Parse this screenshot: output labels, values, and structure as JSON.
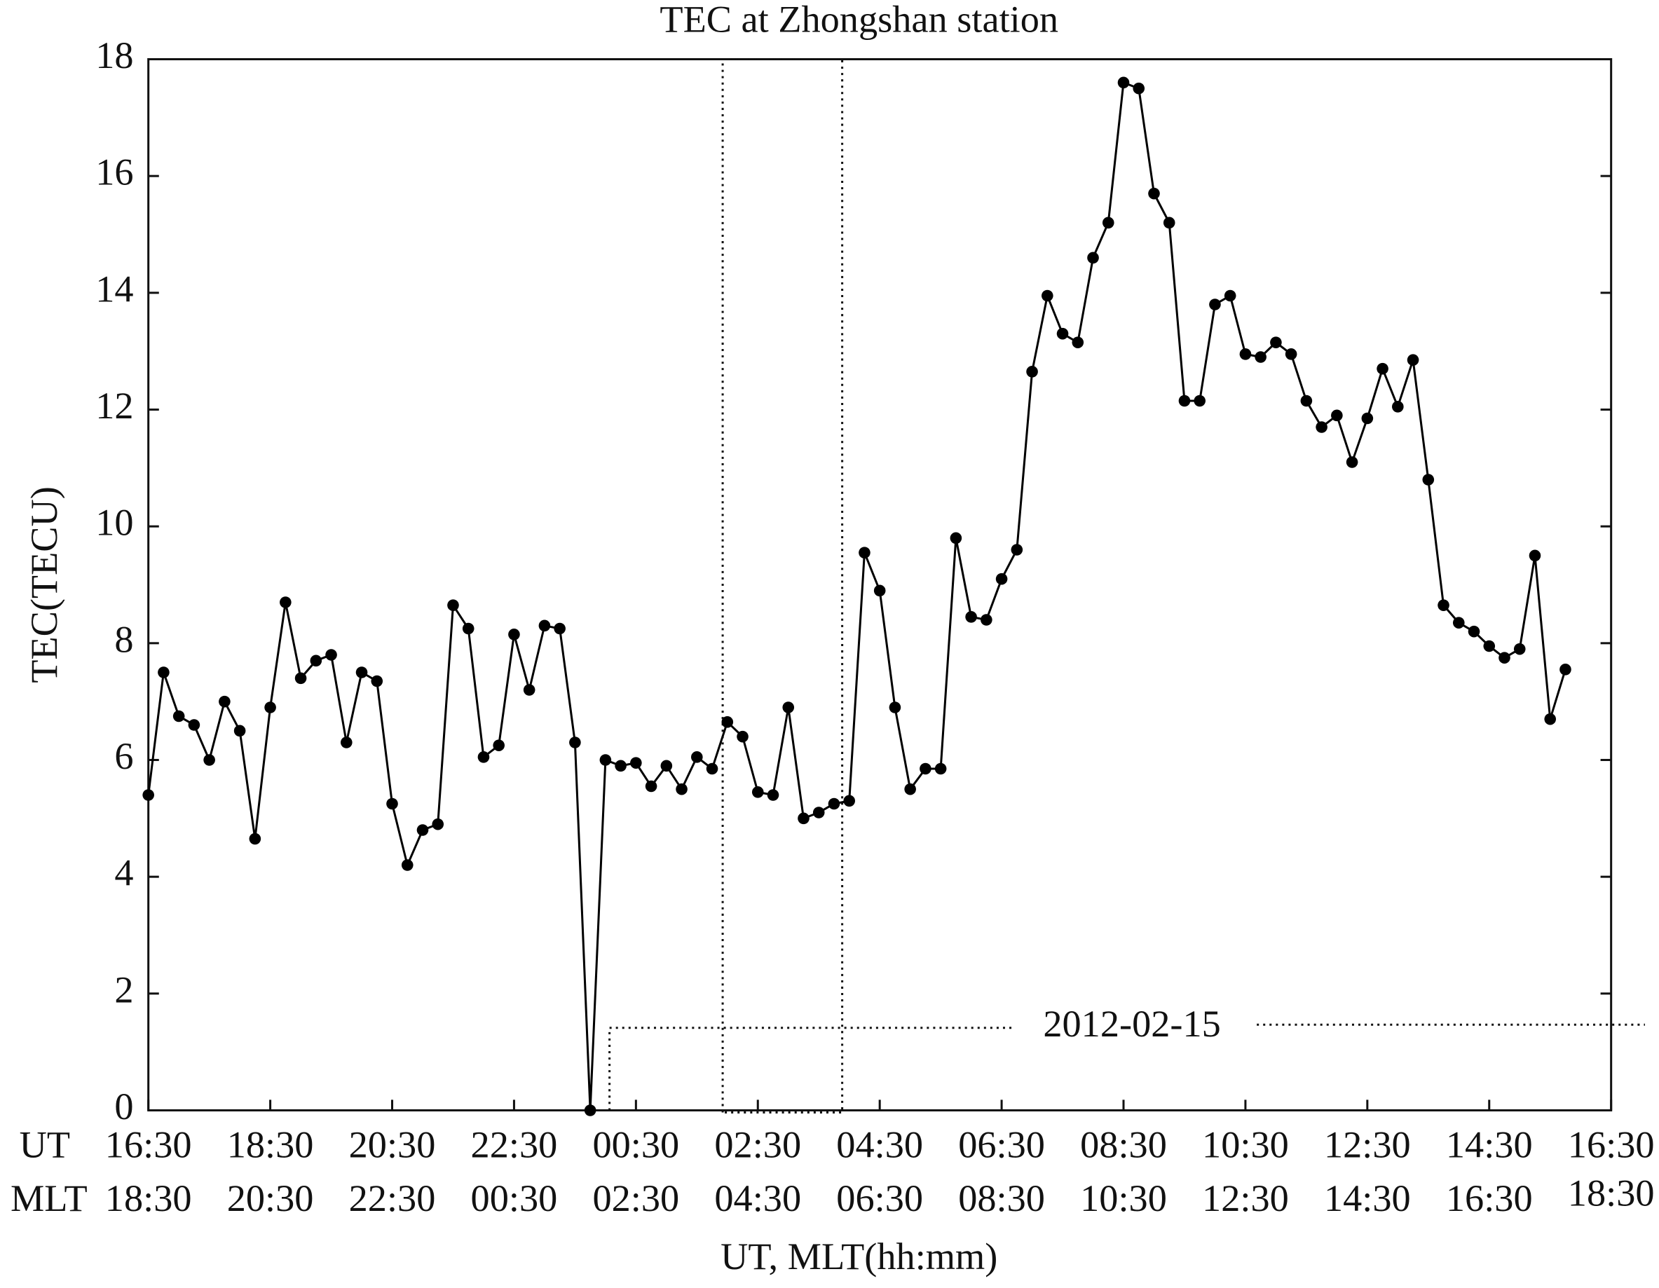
{
  "chart_data": {
    "type": "line",
    "title": "TEC at Zhongshan station",
    "x_title": "UT, MLT(hh:mm)",
    "y_title": "TEC(TECU)",
    "ut_label": "UT",
    "mlt_label": "MLT",
    "date_label": "2012-02-15",
    "color": "#000000",
    "xlim": [
      0,
      24
    ],
    "ylim": [
      0,
      18
    ],
    "yticks": [
      0,
      2,
      4,
      6,
      8,
      10,
      12,
      14,
      16,
      18
    ],
    "xticks": [
      {
        "value": 0,
        "label": "16:30"
      },
      {
        "value": 2,
        "label": "18:30"
      },
      {
        "value": 4,
        "label": "20:30"
      },
      {
        "value": 6,
        "label": "22:30"
      },
      {
        "value": 8,
        "label": "00:30"
      },
      {
        "value": 10,
        "label": "02:30"
      },
      {
        "value": 12,
        "label": "04:30"
      },
      {
        "value": 14,
        "label": "06:30"
      },
      {
        "value": 16,
        "label": "08:30"
      },
      {
        "value": 18,
        "label": "10:30"
      },
      {
        "value": 20,
        "label": "12:30"
      },
      {
        "value": 22,
        "label": "14:30"
      },
      {
        "value": 24,
        "label": "16:30"
      }
    ],
    "mlt_ticks": [
      {
        "value": 0,
        "label": "18:30"
      },
      {
        "value": 2,
        "label": "20:30"
      },
      {
        "value": 4,
        "label": "22:30"
      },
      {
        "value": 6,
        "label": "00:30"
      },
      {
        "value": 8,
        "label": "02:30"
      },
      {
        "value": 10,
        "label": "04:30"
      },
      {
        "value": 12,
        "label": "06:30"
      },
      {
        "value": 14,
        "label": "08:30"
      },
      {
        "value": 16,
        "label": "10:30"
      },
      {
        "value": 18,
        "label": "12:30"
      },
      {
        "value": 20,
        "label": "14:30"
      },
      {
        "value": 22,
        "label": "16:30"
      },
      {
        "value": 24,
        "label": "18:30"
      }
    ],
    "x": [
      0,
      0.25,
      0.5,
      0.75,
      1,
      1.25,
      1.5,
      1.75,
      2,
      2.25,
      2.5,
      2.75,
      3,
      3.25,
      3.5,
      3.75,
      4,
      4.25,
      4.5,
      4.75,
      5,
      5.25,
      5.5,
      5.75,
      6,
      6.25,
      6.5,
      6.75,
      7,
      7.25,
      7.5,
      7.75,
      8,
      8.25,
      8.5,
      8.75,
      9,
      9.25,
      9.5,
      9.75,
      10,
      10.25,
      10.5,
      10.75,
      11,
      11.25,
      11.5,
      11.75,
      12,
      12.25,
      12.5,
      12.75,
      13,
      13.25,
      13.5,
      13.75,
      14,
      14.25,
      14.5,
      14.75,
      15,
      15.25,
      15.5,
      15.75,
      16,
      16.25,
      16.5,
      16.75,
      17,
      17.25,
      17.5,
      17.75,
      18,
      18.25,
      18.5,
      18.75,
      19,
      19.25,
      19.5,
      19.75,
      20,
      20.25,
      20.5,
      20.75,
      21,
      21.25,
      21.5,
      21.75,
      22,
      22.25,
      22.5,
      22.75,
      23,
      23.25
    ],
    "values": [
      5.4,
      7.5,
      6.75,
      6.6,
      6.0,
      7.0,
      6.5,
      4.65,
      6.9,
      8.7,
      7.4,
      7.7,
      7.8,
      6.3,
      7.5,
      7.35,
      5.25,
      4.2,
      4.8,
      4.9,
      8.65,
      8.25,
      6.05,
      6.25,
      8.15,
      7.2,
      8.3,
      8.25,
      6.3,
      0,
      6.0,
      5.9,
      5.95,
      5.55,
      5.9,
      5.5,
      6.05,
      5.85,
      6.65,
      6.4,
      5.45,
      5.4,
      6.9,
      5.0,
      5.1,
      5.25,
      5.3,
      9.55,
      8.9,
      6.9,
      5.5,
      5.85,
      5.85,
      9.8,
      8.45,
      8.4,
      9.1,
      9.6,
      12.65,
      13.95,
      13.3,
      13.15,
      14.6,
      15.2,
      17.6,
      17.5,
      15.7,
      15.2,
      12.15,
      12.15,
      13.8,
      13.95,
      12.95,
      12.9,
      13.15,
      12.95,
      12.15,
      11.7,
      11.9,
      11.1,
      11.85,
      12.7,
      12.05,
      12.85,
      10.8,
      8.65,
      8.35,
      8.2,
      7.95,
      7.75,
      7.9,
      9.5,
      6.7,
      7.55
    ]
  }
}
